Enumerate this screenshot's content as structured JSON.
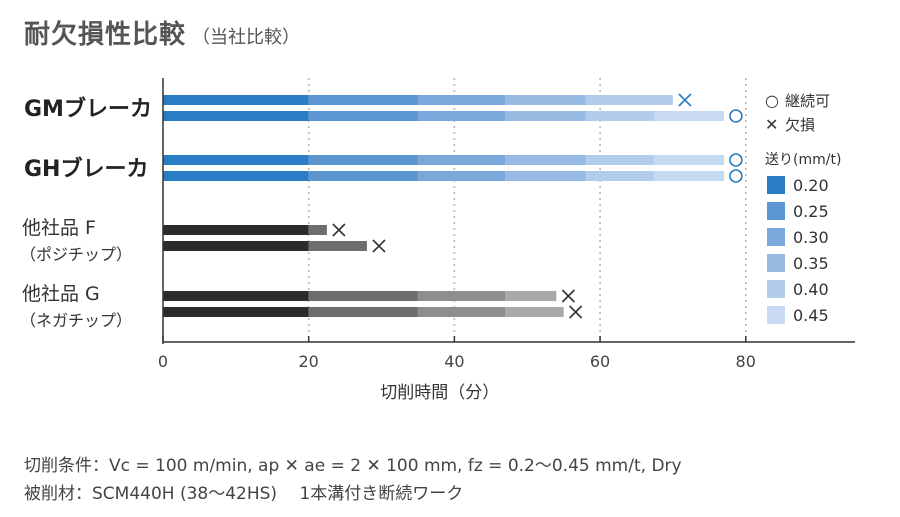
{
  "page_title": "耐欠損性比較",
  "page_subtitle": "（当社比較）",
  "colors": {
    "blue": [
      "#2a7dc4",
      "#5b96d0",
      "#7aa8da",
      "#98bbe3",
      "#b2cdeb",
      "#c7daf1"
    ],
    "gray": [
      "#2b2b2b",
      "#6e6e6e",
      "#8e8e8e",
      "#a9a9a9",
      "#c2c2c2",
      "#d3d3d3"
    ],
    "marker_blue": "#2a7dc4",
    "marker_dark": "#333333"
  },
  "chart_data": {
    "type": "bar",
    "orientation": "horizontal",
    "stacked": true,
    "xlabel": "切削時間（分）",
    "xlim": [
      0,
      95
    ],
    "xticks": [
      "0",
      "20",
      "40",
      "60",
      "80"
    ],
    "grid": "vertical dotted at 20, 40, 60, 80",
    "groups": [
      {
        "label": "GMブレーカ",
        "sublabel": "",
        "palette": "blue",
        "bars": [
          {
            "segments_end": [
              20,
              35,
              47,
              58,
              70
            ],
            "result": "欠損"
          },
          {
            "segments_end": [
              20,
              35,
              47,
              58,
              67.5,
              77
            ],
            "result": "継続可"
          }
        ]
      },
      {
        "label": "GHブレーカ",
        "sublabel": "",
        "palette": "blue",
        "bars": [
          {
            "segments_end": [
              20,
              35,
              47,
              58,
              67.5,
              77
            ],
            "result": "継続可"
          },
          {
            "segments_end": [
              20,
              35,
              47,
              58,
              67.5,
              77
            ],
            "result": "継続可"
          }
        ]
      },
      {
        "label": "他社品 F",
        "sublabel": "（ポジチップ）",
        "palette": "gray",
        "bars": [
          {
            "segments_end": [
              20,
              22.5
            ],
            "result": "欠損"
          },
          {
            "segments_end": [
              20,
              28
            ],
            "result": "欠損"
          }
        ]
      },
      {
        "label": "他社品 G",
        "sublabel": "（ネガチップ）",
        "palette": "gray",
        "bars": [
          {
            "segments_end": [
              20,
              35,
              47,
              54
            ],
            "result": "欠損"
          },
          {
            "segments_end": [
              20,
              35,
              47,
              55
            ],
            "result": "欠損"
          }
        ]
      }
    ],
    "legend": {
      "markers": [
        {
          "symbol": "○",
          "label": "継続可"
        },
        {
          "symbol": "✕",
          "label": "欠損"
        }
      ],
      "feed_title": "送り(mm/t)",
      "feeds": [
        "0.20",
        "0.25",
        "0.30",
        "0.35",
        "0.40",
        "0.45"
      ]
    }
  },
  "notes": {
    "conditions": "切削条件：Vc = 100 m/min, ap ✕ ae = 2 ✕ 100 mm, fz = 0.2～0.45 mm/t, Dry",
    "material": "被削材：SCM440H (38～42HS)　 1本溝付き断続ワーク"
  }
}
